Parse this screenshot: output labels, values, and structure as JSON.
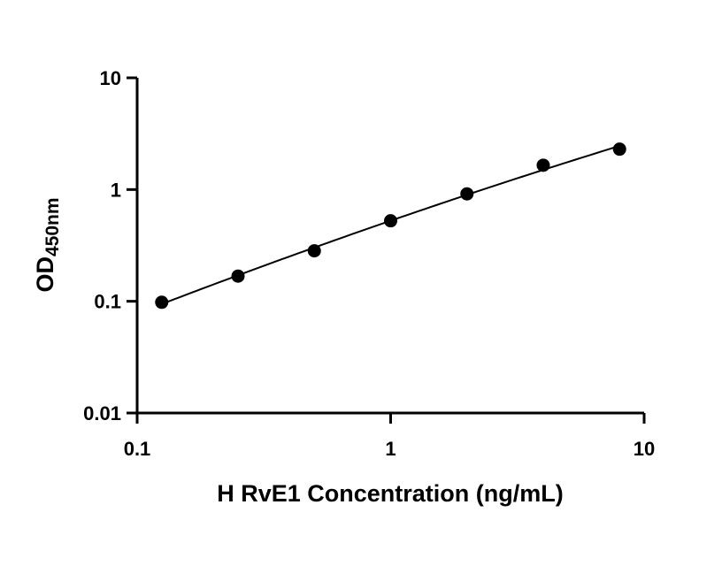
{
  "chart_data": {
    "type": "scatter",
    "title": "",
    "xlabel": "H RvE1 Concentration (ng/mL)",
    "ylabel": {
      "main": "OD",
      "subscript": "450nm"
    },
    "xscale": "log",
    "yscale": "log",
    "xlim": [
      0.1,
      10
    ],
    "ylim": [
      0.01,
      10
    ],
    "xticks": [
      0.1,
      1,
      10
    ],
    "xtick_labels": [
      "0.1",
      "1",
      "10"
    ],
    "yticks": [
      0.01,
      0.1,
      1,
      10
    ],
    "ytick_labels": [
      "0.01",
      "0.1",
      "1",
      "10"
    ],
    "grid": false,
    "legend": "none",
    "series": [
      {
        "x": [
          0.125,
          0.25,
          0.5,
          1,
          2,
          4,
          8
        ],
        "y": [
          0.098,
          0.168,
          0.283,
          0.525,
          0.915,
          1.65,
          2.3
        ],
        "marker": "circle",
        "color": "#000000",
        "fit": "4PL curve"
      }
    ]
  }
}
